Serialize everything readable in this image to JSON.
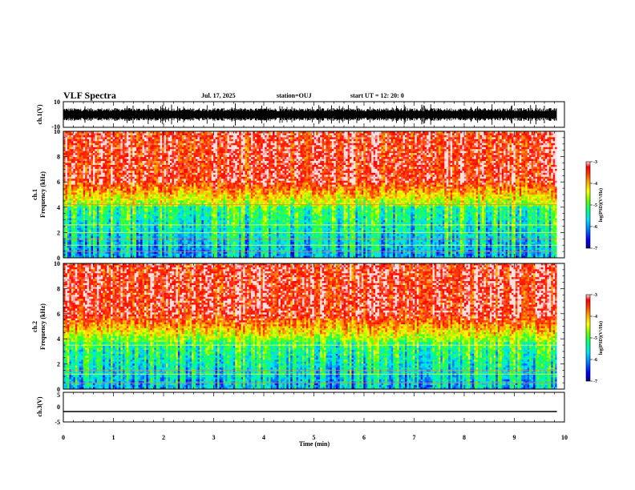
{
  "header": {
    "title": "VLF Spectra",
    "date": "Jul. 17, 2025",
    "station": "station=OUJ",
    "start": "start UT =  12: 20: 0"
  },
  "colors": {
    "spectrum_scale": [
      "#000080",
      "#0000ff",
      "#0080ff",
      "#00e0ff",
      "#00ff80",
      "#60ff00",
      "#ffff00",
      "#ffa000",
      "#ff4000",
      "#ff0000",
      "#ffe0e0"
    ],
    "trace": "#000000"
  },
  "chart_data": [
    {
      "type": "line",
      "name": "ch1-waveform",
      "ylabel": "ch.1(V)",
      "ylim": [
        -10,
        10
      ],
      "yticks": [
        "10",
        "-10"
      ],
      "x": [
        0,
        0.5,
        1,
        1.5,
        2,
        2.5,
        3,
        3.5,
        4,
        4.5,
        5,
        5.5,
        6,
        6.5,
        7,
        7.5,
        8,
        8.5,
        9,
        9.5,
        9.85
      ],
      "y_min": [
        -4,
        -5,
        -4,
        -5,
        -4,
        -6,
        -5,
        -4,
        -5,
        -6,
        -4,
        -5,
        -4,
        -5,
        -6,
        -4,
        -5,
        -4,
        -5,
        -4,
        -4
      ],
      "y_max": [
        4,
        5,
        4,
        5,
        6,
        5,
        4,
        5,
        4,
        5,
        6,
        4,
        5,
        4,
        5,
        6,
        4,
        5,
        6,
        5,
        4
      ]
    },
    {
      "type": "heatmap",
      "name": "ch1-spectrogram",
      "ylabel": "ch.1\nFrequency (kHz)",
      "ylim": [
        0,
        10
      ],
      "yticks": [
        "0",
        "2",
        "4",
        "6",
        "8",
        "10"
      ],
      "xlim": [
        0,
        9.85
      ],
      "colorbar": {
        "label": "log(PSD)(V²/Hz)",
        "range": [
          -7,
          -3
        ],
        "ticks": [
          "-3",
          "-4",
          "-5",
          "-6",
          "-7"
        ]
      },
      "low_band_kHz": 4.0,
      "lines_kHz": [
        0.5,
        1.0,
        1.5,
        2.0,
        4.2,
        2.6
      ]
    },
    {
      "type": "heatmap",
      "name": "ch2-spectrogram",
      "ylabel": "ch.2\nFrequency (kHz)",
      "ylim": [
        0,
        10
      ],
      "yticks": [
        "0",
        "2",
        "4",
        "6",
        "8",
        "10"
      ],
      "xlim": [
        0,
        9.85
      ],
      "colorbar": {
        "label": "log(PSD)(V²/Hz)",
        "range": [
          -7,
          -3
        ],
        "ticks": [
          "-3",
          "-4",
          "-5",
          "-6",
          "-7"
        ]
      },
      "low_band_kHz": 3.8,
      "lines_kHz": [
        0.5,
        1.2,
        1.5,
        3.5
      ]
    },
    {
      "type": "line",
      "name": "ch3-waveform",
      "ylabel": "ch.3(V)",
      "ylim": [
        -5,
        5
      ],
      "yticks": [
        "5",
        "0",
        "-5"
      ],
      "x": [
        0,
        9.85
      ],
      "y": [
        -1.5,
        -1.5
      ]
    }
  ],
  "xaxis": {
    "label": "Time (min)",
    "range": [
      0,
      10
    ],
    "ticks": [
      "0",
      "1",
      "2",
      "3",
      "4",
      "5",
      "6",
      "7",
      "8",
      "9",
      "10"
    ]
  }
}
